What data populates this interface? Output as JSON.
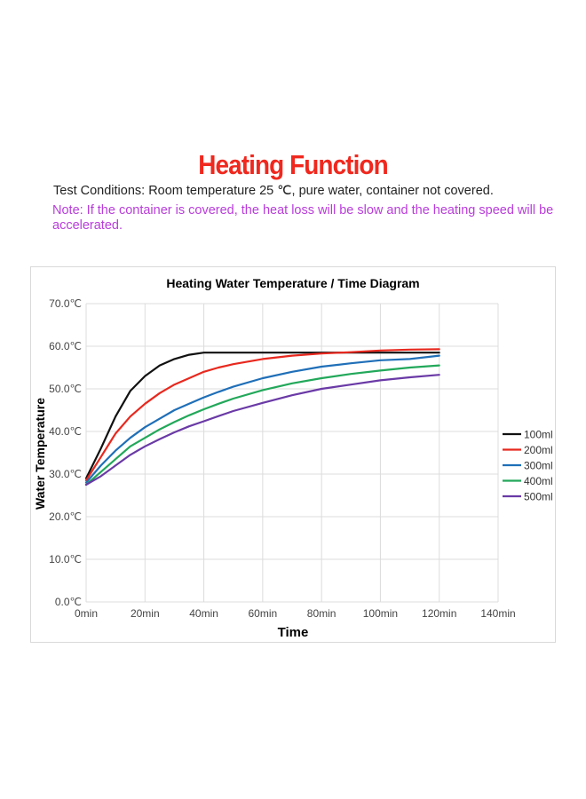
{
  "header": {
    "title": "Heating Function",
    "conditions": "Test Conditions: Room temperature 25 ℃, pure water, container not covered.",
    "note": "Note: If the container is covered, the heat loss will be slow and the heating speed will be accelerated."
  },
  "colors": {
    "title": "#f0281e",
    "note": "#b93cdc",
    "grid": "#dcdcdc",
    "axis_text": "#444444"
  },
  "chart_data": {
    "type": "line",
    "title": "Heating Water Temperature / Time Diagram",
    "xlabel": "Time",
    "ylabel": "Water Temperature",
    "xlim": [
      0,
      140
    ],
    "ylim": [
      0,
      70
    ],
    "x_ticks": [
      0,
      20,
      40,
      60,
      80,
      100,
      120,
      140
    ],
    "x_tick_labels": [
      "0min",
      "20min",
      "40min",
      "60min",
      "80min",
      "100min",
      "120min",
      "140min"
    ],
    "y_ticks": [
      0,
      10,
      20,
      30,
      40,
      50,
      60,
      70
    ],
    "y_tick_labels": [
      "0.0℃",
      "10.0℃",
      "20.0℃",
      "30.0℃",
      "40.0℃",
      "50.0℃",
      "60.0℃",
      "70.0℃"
    ],
    "grid": true,
    "legend_position": "right",
    "series": [
      {
        "name": "100ml",
        "color": "#111111",
        "x": [
          0,
          5,
          10,
          15,
          20,
          25,
          30,
          35,
          40,
          45,
          50,
          60,
          70,
          80,
          90,
          100,
          110,
          120
        ],
        "y": [
          29,
          36,
          43.5,
          49.5,
          53,
          55.5,
          57,
          58,
          58.5,
          58.5,
          58.5,
          58.5,
          58.5,
          58.5,
          58.5,
          58.5,
          58.5,
          58.5
        ]
      },
      {
        "name": "200ml",
        "color": "#e8281e",
        "x": [
          0,
          5,
          10,
          15,
          20,
          25,
          30,
          35,
          40,
          45,
          50,
          60,
          70,
          80,
          90,
          100,
          110,
          120
        ],
        "y": [
          28.5,
          34,
          39.5,
          43.5,
          46.5,
          49,
          51,
          52.5,
          54,
          55,
          55.8,
          57,
          57.8,
          58.3,
          58.6,
          59,
          59.2,
          59.3
        ]
      },
      {
        "name": "300ml",
        "color": "#1f6fb8",
        "x": [
          0,
          5,
          10,
          15,
          20,
          25,
          30,
          35,
          40,
          45,
          50,
          60,
          70,
          80,
          90,
          100,
          110,
          120
        ],
        "y": [
          28,
          32,
          35.5,
          38.5,
          41,
          43,
          45,
          46.5,
          48,
          49.3,
          50.5,
          52.5,
          54,
          55.2,
          56,
          56.7,
          57,
          57.8
        ]
      },
      {
        "name": "400ml",
        "color": "#22a85a",
        "x": [
          0,
          5,
          10,
          15,
          20,
          25,
          30,
          35,
          40,
          45,
          50,
          60,
          70,
          80,
          90,
          100,
          110,
          120
        ],
        "y": [
          27.5,
          30.5,
          33.5,
          36.5,
          38.5,
          40.5,
          42.2,
          43.8,
          45.2,
          46.5,
          47.7,
          49.7,
          51.3,
          52.5,
          53.5,
          54.3,
          55,
          55.5
        ]
      },
      {
        "name": "500ml",
        "color": "#6a3aa6",
        "x": [
          0,
          5,
          10,
          15,
          20,
          25,
          30,
          35,
          40,
          45,
          50,
          60,
          70,
          80,
          90,
          100,
          110,
          120
        ],
        "y": [
          27.5,
          29.5,
          32,
          34.5,
          36.5,
          38.2,
          39.8,
          41.2,
          42.4,
          43.6,
          44.8,
          46.7,
          48.5,
          50,
          51,
          52,
          52.7,
          53.3
        ]
      }
    ]
  }
}
